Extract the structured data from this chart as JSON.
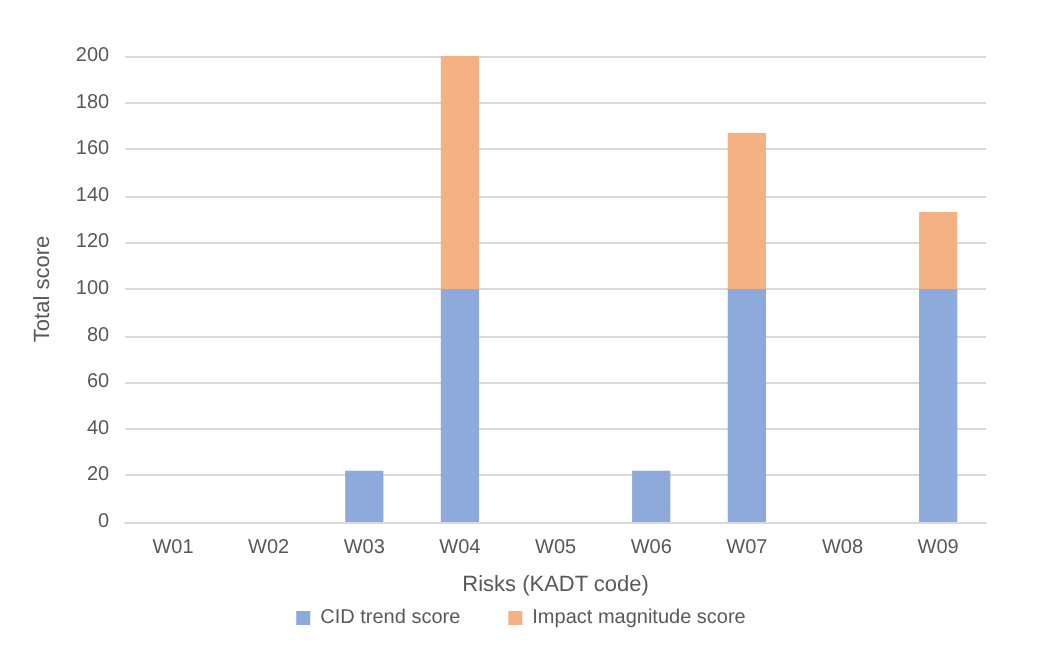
{
  "chart_data": {
    "type": "bar",
    "stacked": true,
    "xlabel": "Risks (KADT code)",
    "ylabel": "Total score",
    "categories": [
      "W01",
      "W02",
      "W03",
      "W04",
      "W05",
      "W06",
      "W07",
      "W08",
      "W09"
    ],
    "series": [
      {
        "name": "CID trend score",
        "color": "#8eaadb",
        "values": [
          0,
          0,
          22,
          100,
          0,
          22,
          100,
          0,
          100
        ]
      },
      {
        "name": "Impact magnitude score",
        "color": "#f4b183",
        "values": [
          0,
          0,
          0,
          100,
          0,
          0,
          67,
          0,
          33
        ]
      }
    ],
    "ylim": [
      0,
      200
    ],
    "yticks": [
      0,
      20,
      40,
      60,
      80,
      100,
      120,
      140,
      160,
      180,
      200
    ],
    "grid": "y",
    "legend": "bottom"
  }
}
